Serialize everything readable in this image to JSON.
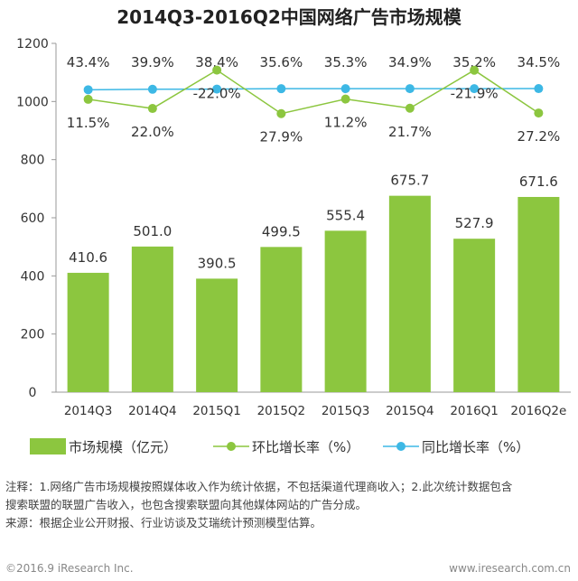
{
  "chart_data": {
    "type": "bar",
    "title": "2014Q3-2016Q2中国网络广告市场规模",
    "categories": [
      "2014Q3",
      "2014Q4",
      "2015Q1",
      "2015Q2",
      "2015Q3",
      "2015Q4",
      "2016Q1",
      "2016Q2e"
    ],
    "y_ticks": [
      "0",
      "200",
      "400",
      "600",
      "800",
      "1000",
      "1200"
    ],
    "ylim": [
      0,
      1200
    ],
    "grid": false,
    "legend_position": "bottom",
    "series": [
      {
        "name": "市场规模（亿元）",
        "type": "bar",
        "color": "#8cc63f",
        "values": [
          410.6,
          501.0,
          390.5,
          499.5,
          555.4,
          675.7,
          527.9,
          671.6
        ],
        "labels": [
          "410.6",
          "501.0",
          "390.5",
          "499.5",
          "555.4",
          "675.7",
          "527.9",
          "671.6"
        ]
      },
      {
        "name": "环比增长率（%）",
        "type": "line",
        "color": "#8cc63f",
        "values": [
          11.5,
          22.0,
          -22.0,
          27.9,
          11.2,
          21.7,
          -21.9,
          27.2
        ],
        "labels": [
          "11.5%",
          "22.0%",
          "-22.0%",
          "27.9%",
          "11.2%",
          "21.7%",
          "-21.9%",
          "27.2%"
        ]
      },
      {
        "name": "同比增长率（%）",
        "type": "line",
        "color": "#3db8e5",
        "values": [
          43.4,
          39.9,
          38.4,
          35.6,
          35.3,
          34.9,
          35.2,
          34.5
        ],
        "labels": [
          "43.4%",
          "39.9%",
          "38.4%",
          "35.6%",
          "35.3%",
          "34.9%",
          "35.2%",
          "34.5%"
        ]
      }
    ]
  },
  "notes": {
    "line1": "注释：1.网络广告市场规模按照媒体收入作为统计依据，不包括渠道代理商收入；2.此次统计数据包含",
    "line2": "搜索联盟的联盟广告收入，也包含搜索联盟向其他媒体网站的广告分成。",
    "line3": "来源：根据企业公开财报、行业访谈及艾瑞统计预测模型估算。"
  },
  "footer": {
    "left": "©2016.9 iResearch Inc.",
    "right": "www.iresearch.com.cn"
  }
}
